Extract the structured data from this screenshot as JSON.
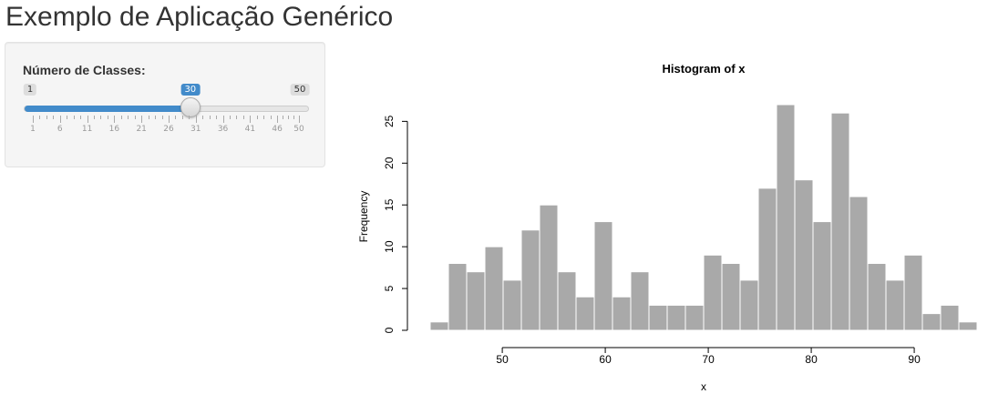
{
  "app_title": "Exemplo de Aplicação Genérico",
  "sidebar": {
    "slider": {
      "label": "Número de Classes:",
      "min": 1,
      "max": 50,
      "value": 30,
      "min_label": "1",
      "max_label": "50",
      "value_label": "30",
      "grid_labels": [
        "1",
        "6",
        "11",
        "16",
        "21",
        "26",
        "31",
        "36",
        "41",
        "46",
        "50"
      ],
      "accent_color": "#428bca"
    }
  },
  "chart_data": {
    "type": "bar",
    "title": "Histogram of x",
    "xlabel": "x",
    "ylabel": "Frequency",
    "bin_start": 43,
    "bin_width": 1.77,
    "values": [
      1,
      8,
      7,
      10,
      6,
      12,
      15,
      7,
      4,
      13,
      4,
      7,
      3,
      3,
      3,
      9,
      8,
      6,
      17,
      27,
      18,
      13,
      26,
      16,
      8,
      6,
      9,
      2,
      3,
      1
    ],
    "xlim": [
      43,
      96.1
    ],
    "ylim": [
      0,
      27
    ],
    "x_ticks": [
      "50",
      "60",
      "70",
      "80",
      "90"
    ],
    "y_ticks": [
      "0",
      "5",
      "10",
      "15",
      "20",
      "25"
    ],
    "bar_color": "#a9a9a9",
    "grid": false
  }
}
